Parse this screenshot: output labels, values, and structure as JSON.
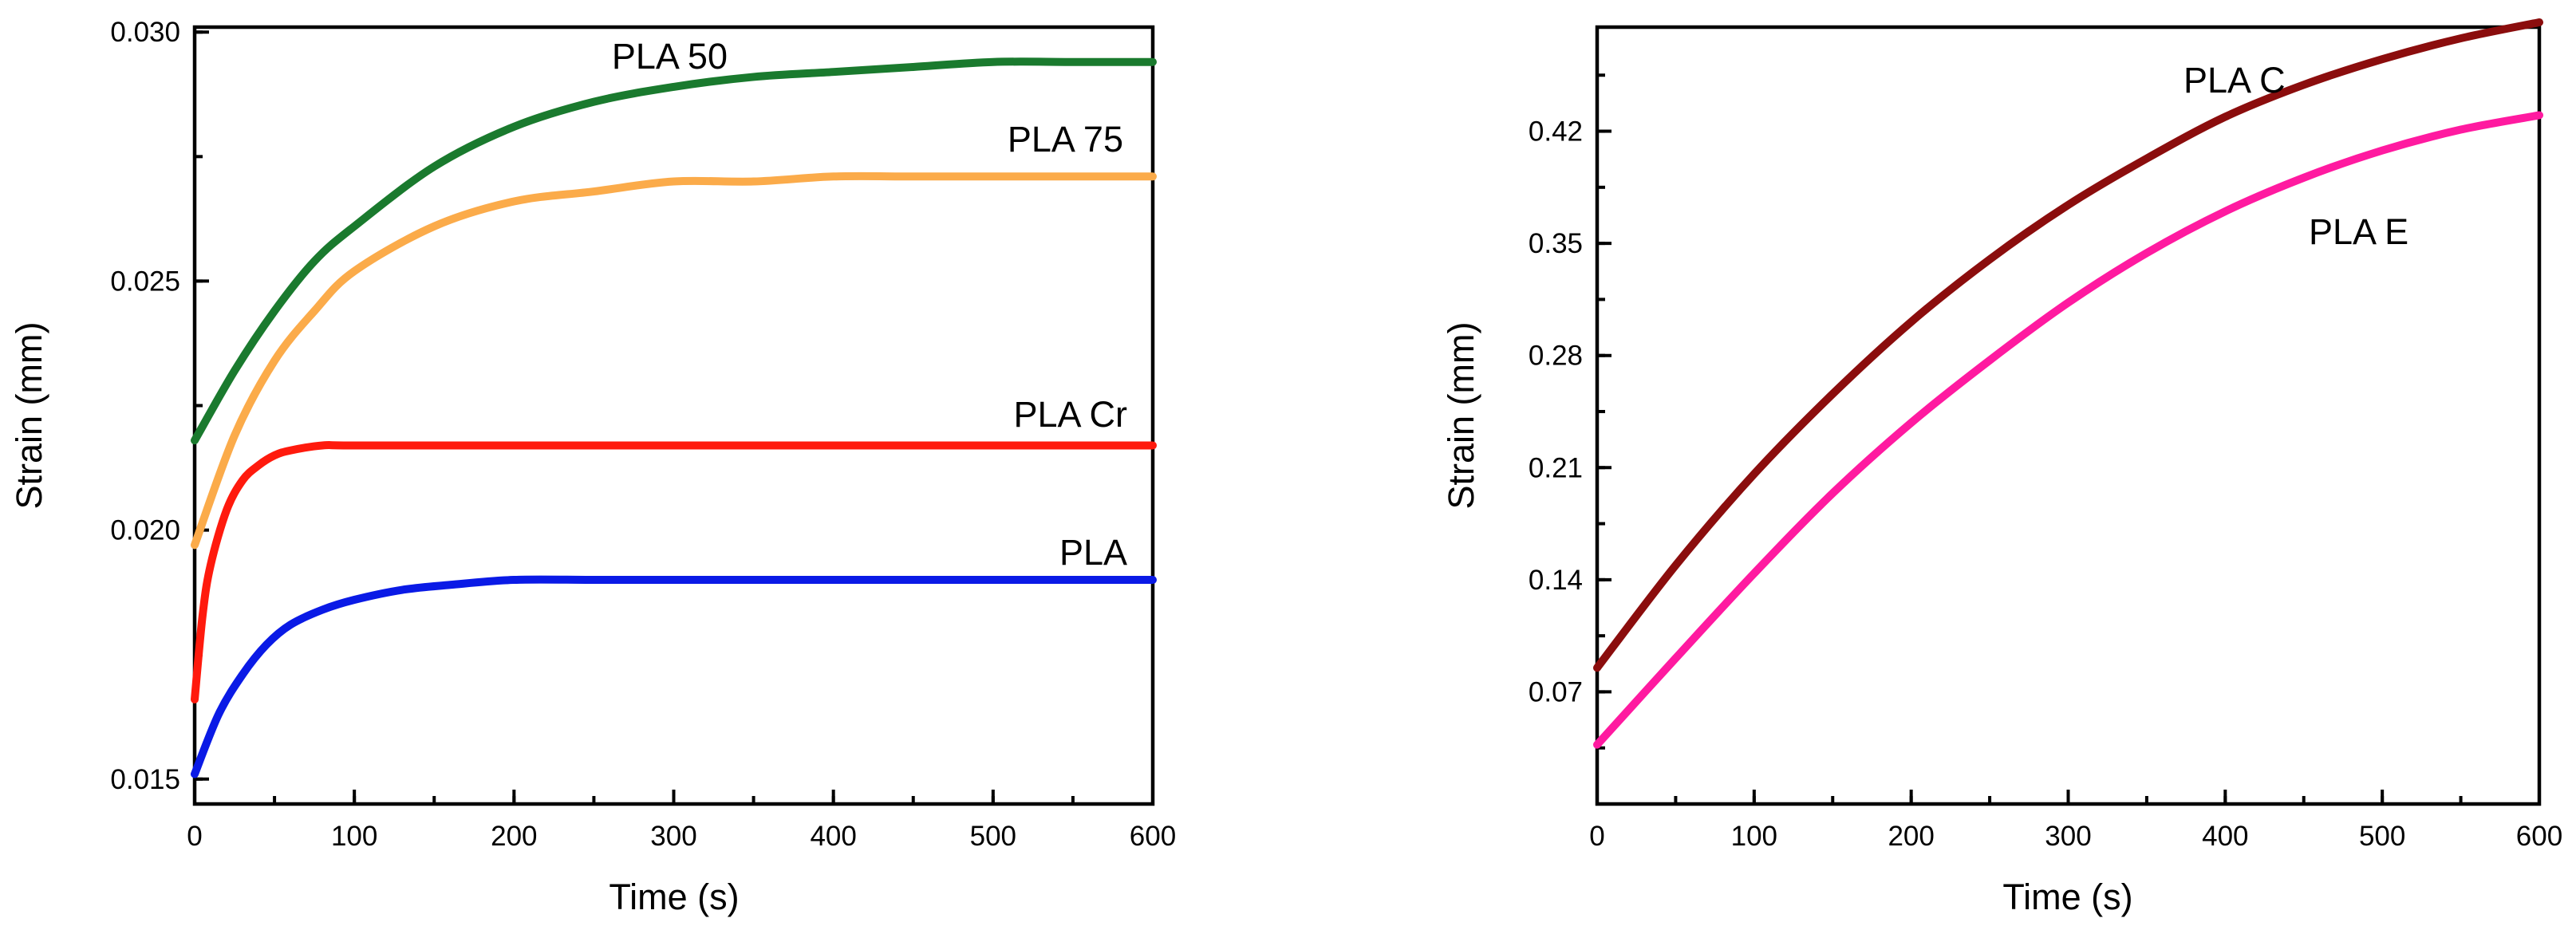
{
  "chart_data": [
    {
      "type": "line",
      "title": "",
      "xlabel": "Time (s)",
      "ylabel": "Strain (mm)",
      "xlim": [
        0,
        600
      ],
      "ylim": [
        0.0145,
        0.0301
      ],
      "x_ticks": [
        0,
        100,
        200,
        300,
        400,
        500,
        600
      ],
      "x_tick_labels": [
        "0",
        "100",
        "200",
        "300",
        "400",
        "500",
        "600"
      ],
      "x_minor_step": 50,
      "y_ticks": [
        0.015,
        0.02,
        0.025,
        0.03
      ],
      "y_tick_labels": [
        "0.015",
        "0.020",
        "0.025",
        "0.030"
      ],
      "y_minor_step": 0.0025,
      "grid": false,
      "series": [
        {
          "name": "PLA 50",
          "label": "PLA 50",
          "color": "#1a7a2e",
          "x": [
            0,
            25,
            50,
            75,
            100,
            150,
            200,
            250,
            300,
            350,
            400,
            450,
            500,
            550,
            600
          ],
          "values": [
            0.0218,
            0.0232,
            0.0244,
            0.0254,
            0.0261,
            0.0273,
            0.0281,
            0.0286,
            0.0289,
            0.0291,
            0.0292,
            0.0293,
            0.0294,
            0.0294,
            0.0294
          ]
        },
        {
          "name": "PLA 75",
          "label": "PLA 75",
          "color": "#fbab4a",
          "x": [
            0,
            25,
            50,
            75,
            100,
            150,
            200,
            250,
            300,
            350,
            400,
            450,
            500,
            550,
            600
          ],
          "values": [
            0.0197,
            0.0219,
            0.0234,
            0.0244,
            0.0252,
            0.0261,
            0.0266,
            0.0268,
            0.027,
            0.027,
            0.0271,
            0.0271,
            0.0271,
            0.0271,
            0.0271
          ]
        },
        {
          "name": "PLA Cr",
          "label": "PLA Cr",
          "color": "#ff1a0d",
          "x": [
            0,
            5,
            10,
            20,
            30,
            40,
            50,
            60,
            80,
            100,
            200,
            300,
            400,
            500,
            600
          ],
          "values": [
            0.0166,
            0.0183,
            0.0193,
            0.0204,
            0.021,
            0.0213,
            0.0215,
            0.0216,
            0.0217,
            0.0217,
            0.0217,
            0.0217,
            0.0217,
            0.0217,
            0.0217
          ]
        },
        {
          "name": "PLA",
          "label": "PLA",
          "color": "#0a1ae6",
          "x": [
            0,
            15,
            30,
            45,
            60,
            80,
            100,
            130,
            160,
            200,
            250,
            300,
            400,
            500,
            600
          ],
          "values": [
            0.0151,
            0.0163,
            0.0171,
            0.0177,
            0.0181,
            0.0184,
            0.0186,
            0.0188,
            0.0189,
            0.019,
            0.019,
            0.019,
            0.019,
            0.019,
            0.019
          ]
        }
      ]
    },
    {
      "type": "line",
      "title": "",
      "xlabel": "Time (s)",
      "ylabel": "Strain (mm)",
      "xlim": [
        0,
        600
      ],
      "ylim": [
        0,
        0.485
      ],
      "x_ticks": [
        0,
        100,
        200,
        300,
        400,
        500,
        600
      ],
      "x_tick_labels": [
        "0",
        "100",
        "200",
        "300",
        "400",
        "500",
        "600"
      ],
      "x_minor_step": 50,
      "y_ticks": [
        0.07,
        0.14,
        0.21,
        0.28,
        0.35,
        0.42
      ],
      "y_tick_labels": [
        "0.07",
        "0.14",
        "0.21",
        "0.28",
        "0.35",
        "0.42"
      ],
      "y_minor_step": 0.035,
      "grid": false,
      "series": [
        {
          "name": "PLA C",
          "label": "PLA C",
          "color": "#8b0d0d",
          "x": [
            0,
            50,
            100,
            150,
            200,
            250,
            300,
            350,
            400,
            450,
            500,
            550,
            600
          ],
          "values": [
            0.085,
            0.149,
            0.206,
            0.256,
            0.301,
            0.34,
            0.374,
            0.403,
            0.429,
            0.449,
            0.465,
            0.478,
            0.488
          ]
        },
        {
          "name": "PLA E",
          "label": "PLA E",
          "color": "#ff1aa0",
          "x": [
            0,
            50,
            100,
            150,
            200,
            250,
            300,
            350,
            400,
            450,
            500,
            550,
            600
          ],
          "values": [
            0.037,
            0.091,
            0.144,
            0.194,
            0.238,
            0.277,
            0.313,
            0.344,
            0.37,
            0.391,
            0.408,
            0.421,
            0.43
          ]
        }
      ]
    }
  ]
}
